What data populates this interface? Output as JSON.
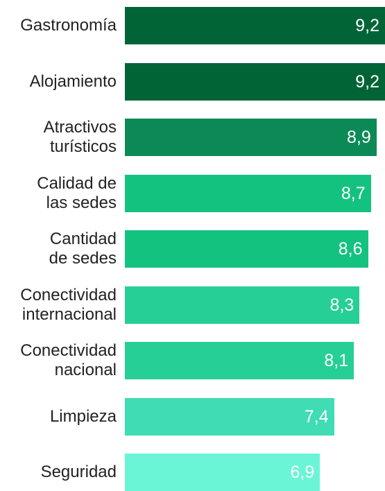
{
  "chart_data": {
    "type": "bar",
    "orientation": "horizontal",
    "categories": [
      "Gastronomía",
      "Alojamiento",
      "Atractivos\nturísticos",
      "Calidad de\nlas sedes",
      "Cantidad\nde sedes",
      "Conectividad\ninternacional",
      "Conectividad\nnacional",
      "Limpieza",
      "Seguridad"
    ],
    "values": [
      9.2,
      9.2,
      8.9,
      8.7,
      8.6,
      8.3,
      8.1,
      7.4,
      6.9
    ],
    "value_labels": [
      "9,2",
      "9,2",
      "8,9",
      "8,7",
      "8,6",
      "8,3",
      "8,1",
      "7,4",
      "6,9"
    ],
    "colors": [
      "#006437",
      "#006437",
      "#0b8a55",
      "#14c27f",
      "#14c27f",
      "#26cf96",
      "#26cf96",
      "#40dcb3",
      "#6af5d6"
    ]
  }
}
